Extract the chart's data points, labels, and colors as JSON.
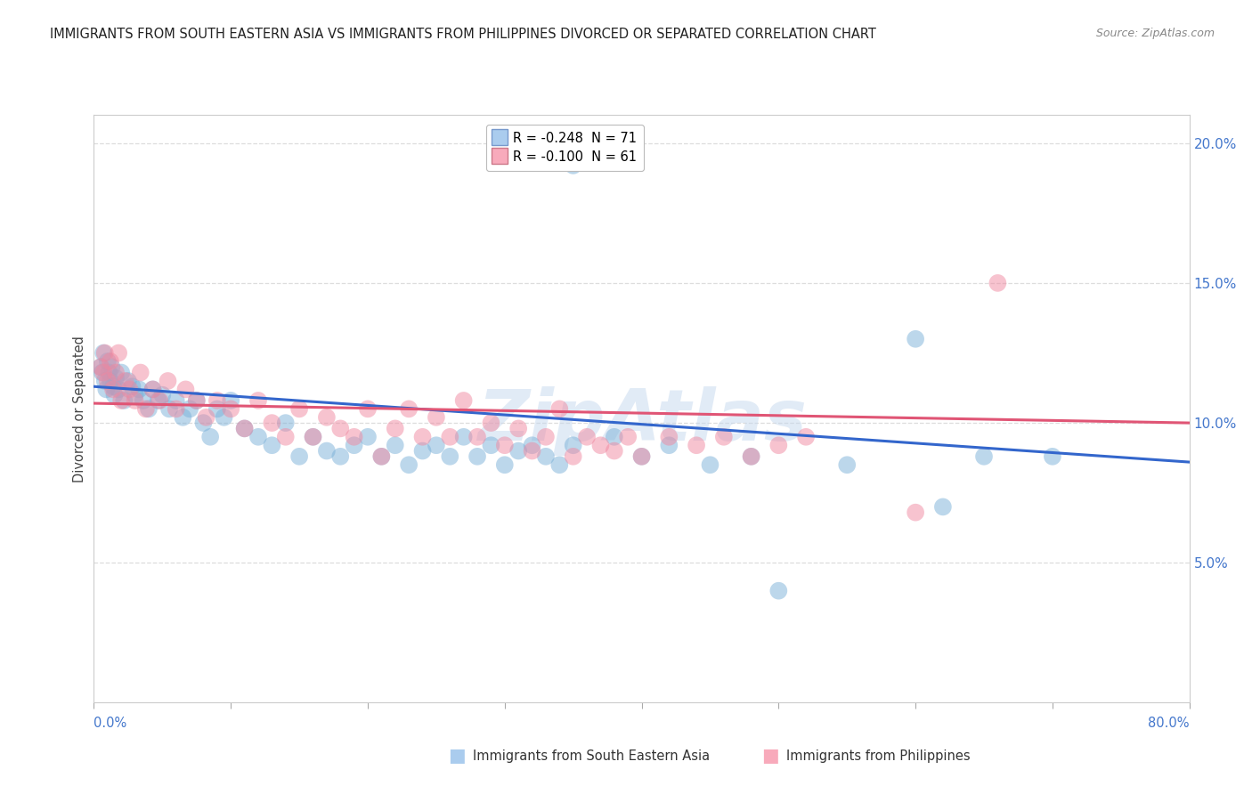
{
  "title": "IMMIGRANTS FROM SOUTH EASTERN ASIA VS IMMIGRANTS FROM PHILIPPINES DIVORCED OR SEPARATED CORRELATION CHART",
  "source": "Source: ZipAtlas.com",
  "ylabel": "Divorced or Separated",
  "blue_R": -0.248,
  "blue_N": 71,
  "pink_R": -0.1,
  "pink_N": 61,
  "xlim": [
    0.0,
    0.8
  ],
  "ylim": [
    0.0,
    0.21
  ],
  "ytick_vals": [
    0.05,
    0.1,
    0.15,
    0.2
  ],
  "ytick_labels": [
    "5.0%",
    "10.0%",
    "15.0%",
    "20.0%"
  ],
  "grid_color": "#dddddd",
  "background_color": "#ffffff",
  "dot_color_blue": "#7ab0d8",
  "dot_color_pink": "#f088a0",
  "line_color_blue": "#3366cc",
  "line_color_pink": "#e05575",
  "watermark": "ZipAtlas",
  "blue_line_x0": 0.0,
  "blue_line_y0": 0.113,
  "blue_line_x1": 0.8,
  "blue_line_y1": 0.086,
  "pink_line_x0": 0.0,
  "pink_line_y0": 0.107,
  "pink_line_x1": 0.8,
  "pink_line_y1": 0.1,
  "blue_x": [
    0.005,
    0.006,
    0.007,
    0.008,
    0.009,
    0.01,
    0.011,
    0.012,
    0.013,
    0.014,
    0.015,
    0.016,
    0.018,
    0.02,
    0.022,
    0.025,
    0.028,
    0.03,
    0.033,
    0.036,
    0.04,
    0.043,
    0.047,
    0.05,
    0.055,
    0.06,
    0.065,
    0.07,
    0.075,
    0.08,
    0.085,
    0.09,
    0.095,
    0.1,
    0.11,
    0.12,
    0.13,
    0.14,
    0.15,
    0.16,
    0.17,
    0.18,
    0.19,
    0.2,
    0.21,
    0.22,
    0.23,
    0.24,
    0.25,
    0.26,
    0.27,
    0.28,
    0.29,
    0.3,
    0.31,
    0.32,
    0.33,
    0.34,
    0.35,
    0.38,
    0.4,
    0.42,
    0.45,
    0.48,
    0.5,
    0.55,
    0.6,
    0.65,
    0.7,
    0.62,
    0.35
  ],
  "blue_y": [
    0.12,
    0.118,
    0.125,
    0.115,
    0.112,
    0.122,
    0.118,
    0.115,
    0.12,
    0.113,
    0.11,
    0.116,
    0.112,
    0.118,
    0.108,
    0.115,
    0.113,
    0.11,
    0.112,
    0.108,
    0.105,
    0.112,
    0.108,
    0.11,
    0.105,
    0.108,
    0.102,
    0.105,
    0.108,
    0.1,
    0.095,
    0.105,
    0.102,
    0.108,
    0.098,
    0.095,
    0.092,
    0.1,
    0.088,
    0.095,
    0.09,
    0.088,
    0.092,
    0.095,
    0.088,
    0.092,
    0.085,
    0.09,
    0.092,
    0.088,
    0.095,
    0.088,
    0.092,
    0.085,
    0.09,
    0.092,
    0.088,
    0.085,
    0.092,
    0.095,
    0.088,
    0.092,
    0.085,
    0.088,
    0.04,
    0.085,
    0.13,
    0.088,
    0.088,
    0.07,
    0.192
  ],
  "pink_x": [
    0.005,
    0.007,
    0.008,
    0.01,
    0.012,
    0.014,
    0.016,
    0.018,
    0.02,
    0.023,
    0.026,
    0.03,
    0.034,
    0.038,
    0.043,
    0.048,
    0.054,
    0.06,
    0.067,
    0.075,
    0.082,
    0.09,
    0.1,
    0.11,
    0.12,
    0.13,
    0.14,
    0.15,
    0.16,
    0.17,
    0.18,
    0.19,
    0.2,
    0.21,
    0.22,
    0.23,
    0.24,
    0.25,
    0.26,
    0.27,
    0.28,
    0.29,
    0.3,
    0.31,
    0.32,
    0.33,
    0.34,
    0.35,
    0.36,
    0.37,
    0.38,
    0.39,
    0.4,
    0.42,
    0.44,
    0.46,
    0.48,
    0.5,
    0.52,
    0.6,
    0.66
  ],
  "pink_y": [
    0.12,
    0.118,
    0.125,
    0.115,
    0.122,
    0.112,
    0.118,
    0.125,
    0.108,
    0.115,
    0.112,
    0.108,
    0.118,
    0.105,
    0.112,
    0.108,
    0.115,
    0.105,
    0.112,
    0.108,
    0.102,
    0.108,
    0.105,
    0.098,
    0.108,
    0.1,
    0.095,
    0.105,
    0.095,
    0.102,
    0.098,
    0.095,
    0.105,
    0.088,
    0.098,
    0.105,
    0.095,
    0.102,
    0.095,
    0.108,
    0.095,
    0.1,
    0.092,
    0.098,
    0.09,
    0.095,
    0.105,
    0.088,
    0.095,
    0.092,
    0.09,
    0.095,
    0.088,
    0.095,
    0.092,
    0.095,
    0.088,
    0.092,
    0.095,
    0.068,
    0.15
  ]
}
